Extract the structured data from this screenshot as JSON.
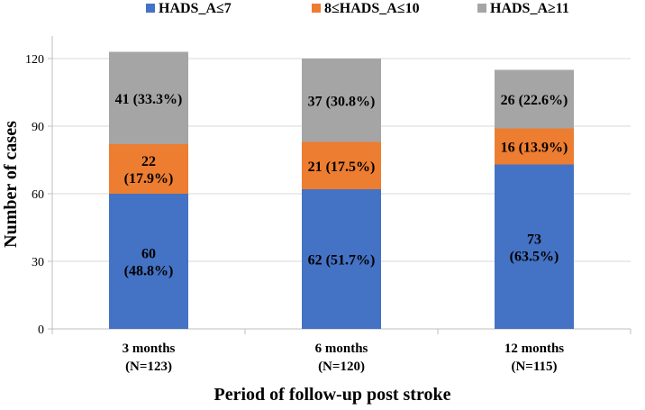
{
  "chart_data": {
    "type": "bar",
    "stacked": true,
    "xlabel": "Period of follow-up post stroke",
    "ylabel": "Number of cases",
    "ylim": [
      0,
      130
    ],
    "yticks": [
      0,
      30,
      60,
      90,
      120
    ],
    "grid": true,
    "legend_position": "top",
    "categories": [
      [
        "3 months",
        "(N=123)"
      ],
      [
        "6 months",
        "(N=120)"
      ],
      [
        "12 months",
        "(N=115)"
      ]
    ],
    "series": [
      {
        "name": "HADS_A≤7",
        "color": "#4472c4",
        "values": [
          60,
          62,
          73
        ],
        "labels": [
          [
            "60",
            "(48.8%)"
          ],
          [
            "62 (51.7%)"
          ],
          [
            "73",
            "(63.5%)"
          ]
        ]
      },
      {
        "name": "8≤HADS_A≤10",
        "color": "#ed7d31",
        "values": [
          22,
          21,
          16
        ],
        "labels": [
          [
            "22",
            "(17.9%)"
          ],
          [
            "21 (17.5%)"
          ],
          [
            "16 (13.9%)"
          ]
        ]
      },
      {
        "name": "HADS_A≥11",
        "color": "#a5a5a5",
        "values": [
          41,
          37,
          26
        ],
        "labels": [
          [
            "41 (33.3%)"
          ],
          [
            "37 (30.8%)"
          ],
          [
            "26 (22.6%)"
          ]
        ]
      }
    ]
  }
}
